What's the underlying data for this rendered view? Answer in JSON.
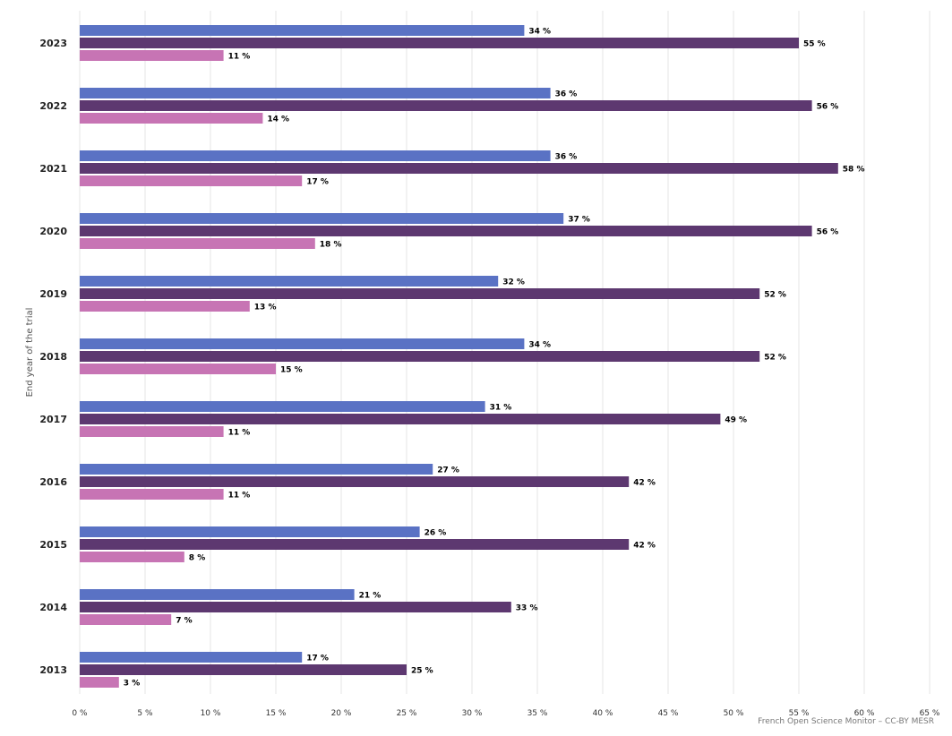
{
  "credit": "French Open Science Monitor – CC-BY MESR",
  "chart_data": {
    "type": "bar",
    "orientation": "horizontal",
    "ylabel": "End year of the trial",
    "categories": [
      "2023",
      "2022",
      "2021",
      "2020",
      "2019",
      "2018",
      "2017",
      "2016",
      "2015",
      "2014",
      "2013"
    ],
    "series": [
      {
        "color": "#5a72c4",
        "values": [
          34,
          36,
          36,
          37,
          32,
          34,
          31,
          27,
          26,
          21,
          17
        ]
      },
      {
        "color": "#5d3870",
        "values": [
          55,
          56,
          58,
          56,
          52,
          52,
          49,
          42,
          42,
          33,
          25
        ]
      },
      {
        "color": "#c774b4",
        "values": [
          11,
          14,
          17,
          18,
          13,
          15,
          11,
          11,
          8,
          7,
          3
        ]
      }
    ],
    "value_suffix": " %",
    "xlim": [
      0,
      65
    ],
    "xticks": [
      0,
      5,
      10,
      15,
      20,
      25,
      30,
      35,
      40,
      45,
      50,
      55,
      60,
      65
    ],
    "xtick_labels": [
      "0 %",
      "5 %",
      "10 %",
      "15 %",
      "20 %",
      "25 %",
      "30 %",
      "35 %",
      "40 %",
      "45 %",
      "50 %",
      "55 %",
      "60 %",
      "65 %"
    ],
    "grid": true
  }
}
